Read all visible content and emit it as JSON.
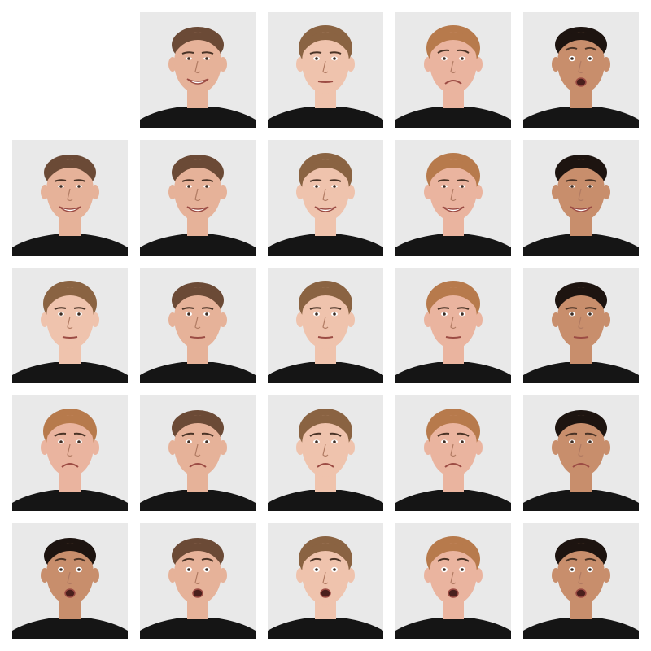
{
  "figure": {
    "rows": 5,
    "cols": 5,
    "empty_corner": true,
    "background": "#ffffff",
    "tile_background": "#e9e9e9",
    "shirt_color": "#151515"
  },
  "people": {
    "m1": {
      "skin": "#e6b299",
      "hair": "#6b4a36",
      "hairStyle": "short"
    },
    "f1": {
      "skin": "#efc3ad",
      "hair": "#8a6342",
      "hairStyle": "bun"
    },
    "f2": {
      "skin": "#eab49f",
      "hair": "#b77a4c",
      "hairStyle": "bun"
    },
    "m2": {
      "skin": "#c88e6c",
      "hair": "#1d1410",
      "hairStyle": "short"
    }
  },
  "expressions": [
    "smile",
    "neutral",
    "sad",
    "surprise"
  ],
  "header_row": [
    {
      "person": "m1",
      "expression": "smile"
    },
    {
      "person": "f1",
      "expression": "neutral"
    },
    {
      "person": "f2",
      "expression": "sad"
    },
    {
      "person": "m2",
      "expression": "surprise"
    }
  ],
  "header_col": [
    {
      "person": "m1",
      "expression": "smile"
    },
    {
      "person": "f1",
      "expression": "neutral"
    },
    {
      "person": "f2",
      "expression": "sad"
    },
    {
      "person": "m2",
      "expression": "surprise"
    }
  ]
}
